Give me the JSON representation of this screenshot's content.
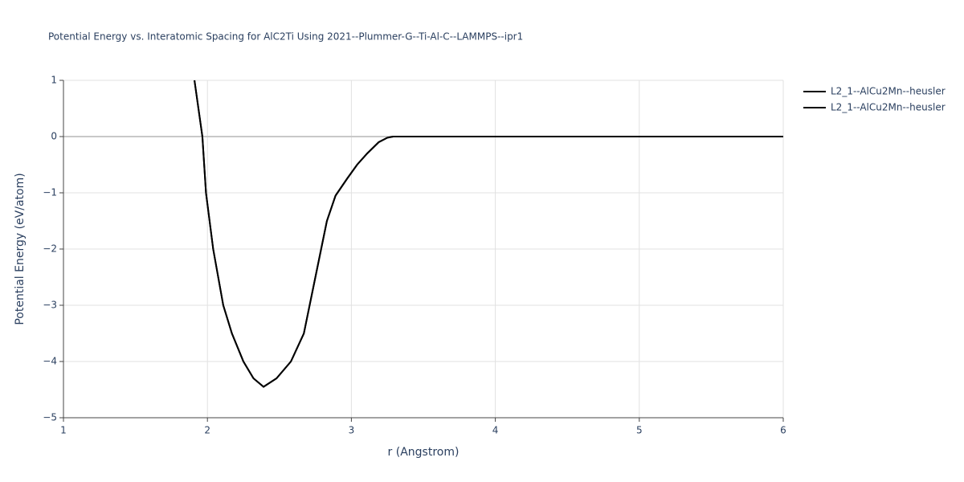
{
  "chart_data": {
    "type": "line",
    "title": "Potential Energy vs. Interatomic Spacing for AlC2Ti Using 2021--Plummer-G--Ti-Al-C--LAMMPS--ipr1",
    "xlabel": "r (Angstrom)",
    "ylabel": "Potential Energy (eV/atom)",
    "x": [
      1.91,
      1.965,
      1.99,
      2.04,
      2.11,
      2.17,
      2.25,
      2.32,
      2.39,
      2.48,
      2.58,
      2.67,
      2.71,
      2.79,
      2.83,
      2.89,
      2.97,
      3.04,
      3.11,
      3.19,
      3.25,
      3.29,
      4,
      5,
      6
    ],
    "series": [
      {
        "name": "L2_1--AlCu2Mn--heusler",
        "color": "#000000",
        "values": [
          1,
          0,
          -1,
          -2,
          -3,
          -3.5,
          -4,
          -4.3,
          -4.45,
          -4.3,
          -4,
          -3.5,
          -3,
          -2,
          -1.5,
          -1.05,
          -0.75,
          -0.5,
          -0.3,
          -0.1,
          -0.02,
          0,
          0,
          0,
          0
        ]
      },
      {
        "name": "L2_1--AlCu2Mn--heusler",
        "color": "#000000",
        "values": [
          1,
          0,
          -1,
          -2,
          -3,
          -3.5,
          -4,
          -4.3,
          -4.45,
          -4.3,
          -4,
          -3.5,
          -3,
          -2,
          -1.5,
          -1.05,
          -0.75,
          -0.5,
          -0.3,
          -0.1,
          -0.02,
          0,
          0,
          0,
          0
        ]
      }
    ],
    "xlim": [
      1,
      6
    ],
    "xticks": [
      1,
      2,
      3,
      4,
      5,
      6
    ],
    "ylim": [
      -5,
      1
    ],
    "yticks": [
      {
        "value": -5,
        "label": "−5"
      },
      {
        "value": -4,
        "label": "−4"
      },
      {
        "value": -3,
        "label": "−3"
      },
      {
        "value": -2,
        "label": "−2"
      },
      {
        "value": -1,
        "label": "−1"
      },
      0,
      1
    ],
    "grid": true,
    "legend": "right"
  }
}
